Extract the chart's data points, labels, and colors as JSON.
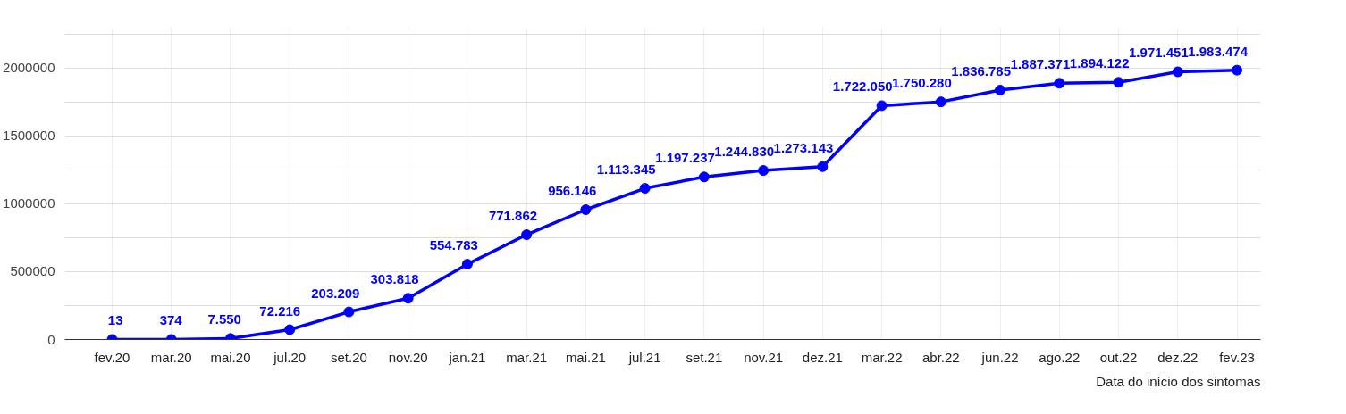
{
  "chart_data": {
    "type": "line",
    "xlabel": "Data do início dos sintomas",
    "categories": [
      "fev.20",
      "mar.20",
      "mai.20",
      "jul.20",
      "set.20",
      "nov.20",
      "jan.21",
      "mar.21",
      "mai.21",
      "jul.21",
      "set.21",
      "nov.21",
      "dez.21",
      "mar.22",
      "abr.22",
      "jun.22",
      "ago.22",
      "out.22",
      "dez.22",
      "fev.23"
    ],
    "series": [
      {
        "color": "#0000ff",
        "values": [
          13,
          374,
          7550,
          72216,
          203209,
          303818,
          554783,
          771862,
          956146,
          1113345,
          1197237,
          1244830,
          1273143,
          1722050,
          1750280,
          1836785,
          1887371,
          1894122,
          1971451,
          1983474
        ],
        "value_labels": [
          "13",
          "374",
          "7.550",
          "72.216",
          "203.209",
          "303.818",
          "554.783",
          "771.862",
          "956.146",
          "1.113.345",
          "1.197.237",
          "1.244.830",
          "1.273.143",
          "1.722.050",
          "1.750.280",
          "1.836.785",
          "1.887.371",
          "1.894.122",
          "1.971.451",
          "1.983.474"
        ]
      }
    ],
    "ylim": [
      0,
      2300000
    ],
    "yticks": [
      0,
      {
        "value": 250000,
        "label": null
      },
      500000,
      {
        "value": 750000,
        "label": null
      },
      1000000,
      {
        "value": 1250000,
        "label": null
      },
      1500000,
      {
        "value": 1750000,
        "label": null
      },
      2000000,
      {
        "value": 2250000,
        "label": null
      }
    ],
    "grid": true,
    "marker": "circle",
    "line_style": "solid"
  }
}
